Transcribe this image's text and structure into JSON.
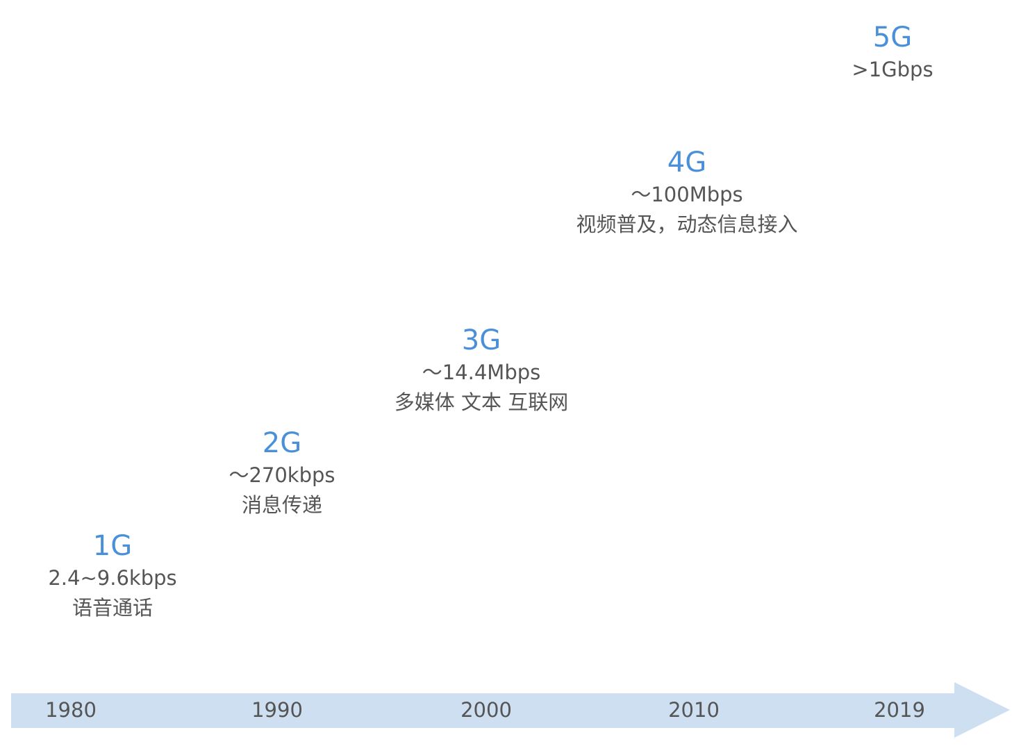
{
  "generations": [
    {
      "name": "1G",
      "speed": "2.4~9.6kbps",
      "use": "语音通话"
    },
    {
      "name": "2G",
      "speed": "～270kbps",
      "use": "消息传递"
    },
    {
      "name": "3G",
      "speed": "～14.4Mbps",
      "use": "多媒体 文本 互联网"
    },
    {
      "name": "4G",
      "speed": "～100Mbps",
      "use": "视频普及，动态信息接入"
    },
    {
      "name": "5G",
      "speed": ">1Gbps",
      "use": ""
    }
  ],
  "timeline": {
    "years": [
      "1980",
      "1990",
      "2000",
      "2010",
      "2019"
    ]
  },
  "colors": {
    "generation_label": "#4a90d9",
    "text": "#555555",
    "timeline_arrow": "#cddff1"
  }
}
